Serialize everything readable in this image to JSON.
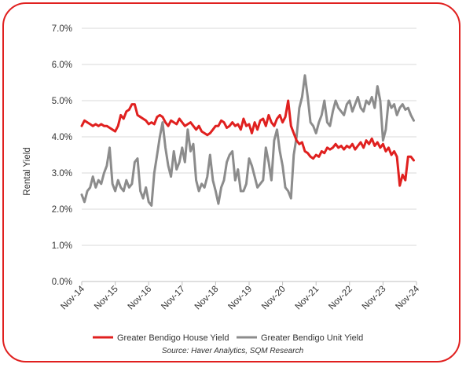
{
  "chart_data": {
    "type": "line",
    "title": "",
    "xlabel": "",
    "ylabel": "Rental Yield",
    "x_ticks": [
      "Nov-14",
      "Nov-15",
      "Nov-16",
      "Nov-17",
      "Nov-18",
      "Nov-19",
      "Nov-20",
      "Nov-21",
      "Nov-22",
      "Nov-23",
      "Nov-24"
    ],
    "y_ticks": [
      "0.0%",
      "1.0%",
      "2.0%",
      "3.0%",
      "4.0%",
      "5.0%",
      "6.0%",
      "7.0%"
    ],
    "ylim": [
      0,
      7
    ],
    "grid": "horizontal",
    "legend_position": "bottom",
    "source": "Source: Haver Analytics, SQM Research",
    "series": [
      {
        "name": "Greater Bendigo House Yield",
        "color": "#e0201f",
        "points": [
          [
            "2014-11",
            4.3
          ],
          [
            "2014-12",
            4.45
          ],
          [
            "2015-01",
            4.4
          ],
          [
            "2015-02",
            4.35
          ],
          [
            "2015-03",
            4.3
          ],
          [
            "2015-04",
            4.35
          ],
          [
            "2015-05",
            4.3
          ],
          [
            "2015-06",
            4.35
          ],
          [
            "2015-07",
            4.3
          ],
          [
            "2015-08",
            4.3
          ],
          [
            "2015-09",
            4.25
          ],
          [
            "2015-10",
            4.2
          ],
          [
            "2015-11",
            4.15
          ],
          [
            "2015-12",
            4.3
          ],
          [
            "2016-01",
            4.6
          ],
          [
            "2016-02",
            4.5
          ],
          [
            "2016-03",
            4.7
          ],
          [
            "2016-04",
            4.75
          ],
          [
            "2016-05",
            4.9
          ],
          [
            "2016-06",
            4.9
          ],
          [
            "2016-07",
            4.6
          ],
          [
            "2016-08",
            4.55
          ],
          [
            "2016-09",
            4.5
          ],
          [
            "2016-10",
            4.45
          ],
          [
            "2016-11",
            4.35
          ],
          [
            "2016-12",
            4.4
          ],
          [
            "2017-01",
            4.35
          ],
          [
            "2017-02",
            4.55
          ],
          [
            "2017-03",
            4.6
          ],
          [
            "2017-04",
            4.55
          ],
          [
            "2017-05",
            4.4
          ],
          [
            "2017-06",
            4.3
          ],
          [
            "2017-07",
            4.45
          ],
          [
            "2017-08",
            4.4
          ],
          [
            "2017-09",
            4.35
          ],
          [
            "2017-10",
            4.5
          ],
          [
            "2017-11",
            4.4
          ],
          [
            "2017-12",
            4.3
          ],
          [
            "2018-01",
            4.35
          ],
          [
            "2018-02",
            4.4
          ],
          [
            "2018-03",
            4.3
          ],
          [
            "2018-04",
            4.2
          ],
          [
            "2018-05",
            4.3
          ],
          [
            "2018-06",
            4.15
          ],
          [
            "2018-07",
            4.1
          ],
          [
            "2018-08",
            4.05
          ],
          [
            "2018-09",
            4.1
          ],
          [
            "2018-10",
            4.2
          ],
          [
            "2018-11",
            4.3
          ],
          [
            "2018-12",
            4.3
          ],
          [
            "2019-01",
            4.45
          ],
          [
            "2019-02",
            4.4
          ],
          [
            "2019-03",
            4.25
          ],
          [
            "2019-04",
            4.3
          ],
          [
            "2019-05",
            4.4
          ],
          [
            "2019-06",
            4.3
          ],
          [
            "2019-07",
            4.35
          ],
          [
            "2019-08",
            4.2
          ],
          [
            "2019-09",
            4.5
          ],
          [
            "2019-10",
            4.3
          ],
          [
            "2019-11",
            4.35
          ],
          [
            "2019-12",
            4.1
          ],
          [
            "2020-01",
            4.4
          ],
          [
            "2020-02",
            4.2
          ],
          [
            "2020-03",
            4.45
          ],
          [
            "2020-04",
            4.5
          ],
          [
            "2020-05",
            4.3
          ],
          [
            "2020-06",
            4.6
          ],
          [
            "2020-07",
            4.4
          ],
          [
            "2020-08",
            4.3
          ],
          [
            "2020-09",
            4.5
          ],
          [
            "2020-10",
            4.6
          ],
          [
            "2020-11",
            4.4
          ],
          [
            "2020-12",
            4.55
          ],
          [
            "2021-01",
            5.0
          ],
          [
            "2021-02",
            4.3
          ],
          [
            "2021-03",
            4.1
          ],
          [
            "2021-04",
            3.9
          ],
          [
            "2021-05",
            3.8
          ],
          [
            "2021-06",
            3.85
          ],
          [
            "2021-07",
            3.6
          ],
          [
            "2021-08",
            3.55
          ],
          [
            "2021-09",
            3.45
          ],
          [
            "2021-10",
            3.4
          ],
          [
            "2021-11",
            3.5
          ],
          [
            "2021-12",
            3.45
          ],
          [
            "2022-01",
            3.6
          ],
          [
            "2022-02",
            3.55
          ],
          [
            "2022-03",
            3.7
          ],
          [
            "2022-04",
            3.65
          ],
          [
            "2022-05",
            3.7
          ],
          [
            "2022-06",
            3.8
          ],
          [
            "2022-07",
            3.7
          ],
          [
            "2022-08",
            3.75
          ],
          [
            "2022-09",
            3.65
          ],
          [
            "2022-10",
            3.75
          ],
          [
            "2022-11",
            3.7
          ],
          [
            "2022-12",
            3.8
          ],
          [
            "2023-01",
            3.65
          ],
          [
            "2023-02",
            3.75
          ],
          [
            "2023-03",
            3.85
          ],
          [
            "2023-04",
            3.7
          ],
          [
            "2023-05",
            3.9
          ],
          [
            "2023-06",
            3.8
          ],
          [
            "2023-07",
            3.95
          ],
          [
            "2023-08",
            3.75
          ],
          [
            "2023-09",
            3.85
          ],
          [
            "2023-10",
            3.7
          ],
          [
            "2023-11",
            3.8
          ],
          [
            "2023-12",
            3.6
          ],
          [
            "2024-01",
            3.7
          ],
          [
            "2024-02",
            3.5
          ],
          [
            "2024-03",
            3.6
          ],
          [
            "2024-04",
            3.45
          ],
          [
            "2024-05",
            2.65
          ],
          [
            "2024-06",
            2.95
          ],
          [
            "2024-07",
            2.8
          ],
          [
            "2024-08",
            3.45
          ],
          [
            "2024-09",
            3.45
          ],
          [
            "2024-10",
            3.35
          ]
        ]
      },
      {
        "name": "Greater Bendigo Unit Yield",
        "color": "#8c8c8c",
        "points": [
          [
            "2014-11",
            2.4
          ],
          [
            "2014-12",
            2.2
          ],
          [
            "2015-01",
            2.5
          ],
          [
            "2015-02",
            2.6
          ],
          [
            "2015-03",
            2.9
          ],
          [
            "2015-04",
            2.6
          ],
          [
            "2015-05",
            2.8
          ],
          [
            "2015-06",
            2.7
          ],
          [
            "2015-07",
            3.0
          ],
          [
            "2015-08",
            3.2
          ],
          [
            "2015-09",
            3.7
          ],
          [
            "2015-10",
            2.7
          ],
          [
            "2015-11",
            2.5
          ],
          [
            "2015-12",
            2.8
          ],
          [
            "2016-01",
            2.6
          ],
          [
            "2016-02",
            2.5
          ],
          [
            "2016-03",
            2.8
          ],
          [
            "2016-04",
            2.6
          ],
          [
            "2016-05",
            2.7
          ],
          [
            "2016-06",
            3.3
          ],
          [
            "2016-07",
            3.4
          ],
          [
            "2016-08",
            2.5
          ],
          [
            "2016-09",
            2.3
          ],
          [
            "2016-10",
            2.6
          ],
          [
            "2016-11",
            2.2
          ],
          [
            "2016-12",
            2.1
          ],
          [
            "2017-01",
            3.0
          ],
          [
            "2017-02",
            3.5
          ],
          [
            "2017-03",
            4.0
          ],
          [
            "2017-04",
            4.4
          ],
          [
            "2017-05",
            3.7
          ],
          [
            "2017-06",
            3.2
          ],
          [
            "2017-07",
            2.9
          ],
          [
            "2017-08",
            3.6
          ],
          [
            "2017-09",
            3.1
          ],
          [
            "2017-10",
            3.3
          ],
          [
            "2017-11",
            3.7
          ],
          [
            "2017-12",
            3.3
          ],
          [
            "2018-01",
            4.2
          ],
          [
            "2018-02",
            3.6
          ],
          [
            "2018-03",
            3.8
          ],
          [
            "2018-04",
            2.8
          ],
          [
            "2018-05",
            2.5
          ],
          [
            "2018-06",
            2.7
          ],
          [
            "2018-07",
            2.6
          ],
          [
            "2018-08",
            2.9
          ],
          [
            "2018-09",
            3.5
          ],
          [
            "2018-10",
            2.8
          ],
          [
            "2018-11",
            2.5
          ],
          [
            "2018-12",
            2.15
          ],
          [
            "2019-01",
            2.6
          ],
          [
            "2019-02",
            2.8
          ],
          [
            "2019-03",
            3.3
          ],
          [
            "2019-04",
            3.5
          ],
          [
            "2019-05",
            3.6
          ],
          [
            "2019-06",
            2.8
          ],
          [
            "2019-07",
            3.1
          ],
          [
            "2019-08",
            2.5
          ],
          [
            "2019-09",
            2.5
          ],
          [
            "2019-10",
            2.7
          ],
          [
            "2019-11",
            3.4
          ],
          [
            "2019-12",
            3.2
          ],
          [
            "2020-01",
            2.9
          ],
          [
            "2020-02",
            2.6
          ],
          [
            "2020-03",
            2.7
          ],
          [
            "2020-04",
            2.8
          ],
          [
            "2020-05",
            3.7
          ],
          [
            "2020-06",
            3.3
          ],
          [
            "2020-07",
            2.8
          ],
          [
            "2020-08",
            3.9
          ],
          [
            "2020-09",
            4.2
          ],
          [
            "2020-10",
            3.6
          ],
          [
            "2020-11",
            3.2
          ],
          [
            "2020-12",
            2.6
          ],
          [
            "2021-01",
            2.5
          ],
          [
            "2021-02",
            2.3
          ],
          [
            "2021-03",
            3.5
          ],
          [
            "2021-04",
            4.0
          ],
          [
            "2021-05",
            4.8
          ],
          [
            "2021-06",
            5.1
          ],
          [
            "2021-07",
            5.7
          ],
          [
            "2021-08",
            5.1
          ],
          [
            "2021-09",
            4.4
          ],
          [
            "2021-10",
            4.3
          ],
          [
            "2021-11",
            4.1
          ],
          [
            "2021-12",
            4.4
          ],
          [
            "2022-01",
            4.6
          ],
          [
            "2022-02",
            5.0
          ],
          [
            "2022-03",
            4.4
          ],
          [
            "2022-04",
            4.3
          ],
          [
            "2022-05",
            4.7
          ],
          [
            "2022-06",
            5.0
          ],
          [
            "2022-07",
            4.8
          ],
          [
            "2022-08",
            4.7
          ],
          [
            "2022-09",
            4.6
          ],
          [
            "2022-10",
            4.9
          ],
          [
            "2022-11",
            5.0
          ],
          [
            "2022-12",
            4.7
          ],
          [
            "2023-01",
            4.9
          ],
          [
            "2023-02",
            5.1
          ],
          [
            "2023-03",
            4.8
          ],
          [
            "2023-04",
            4.7
          ],
          [
            "2023-05",
            5.0
          ],
          [
            "2023-06",
            4.9
          ],
          [
            "2023-07",
            5.1
          ],
          [
            "2023-08",
            4.8
          ],
          [
            "2023-09",
            5.4
          ],
          [
            "2023-10",
            5.0
          ],
          [
            "2023-11",
            3.9
          ],
          [
            "2023-12",
            4.2
          ],
          [
            "2024-01",
            5.0
          ],
          [
            "2024-02",
            4.8
          ],
          [
            "2024-03",
            4.9
          ],
          [
            "2024-04",
            4.6
          ],
          [
            "2024-05",
            4.8
          ],
          [
            "2024-06",
            4.9
          ],
          [
            "2024-07",
            4.75
          ],
          [
            "2024-08",
            4.8
          ],
          [
            "2024-09",
            4.6
          ],
          [
            "2024-10",
            4.45
          ]
        ]
      }
    ]
  }
}
